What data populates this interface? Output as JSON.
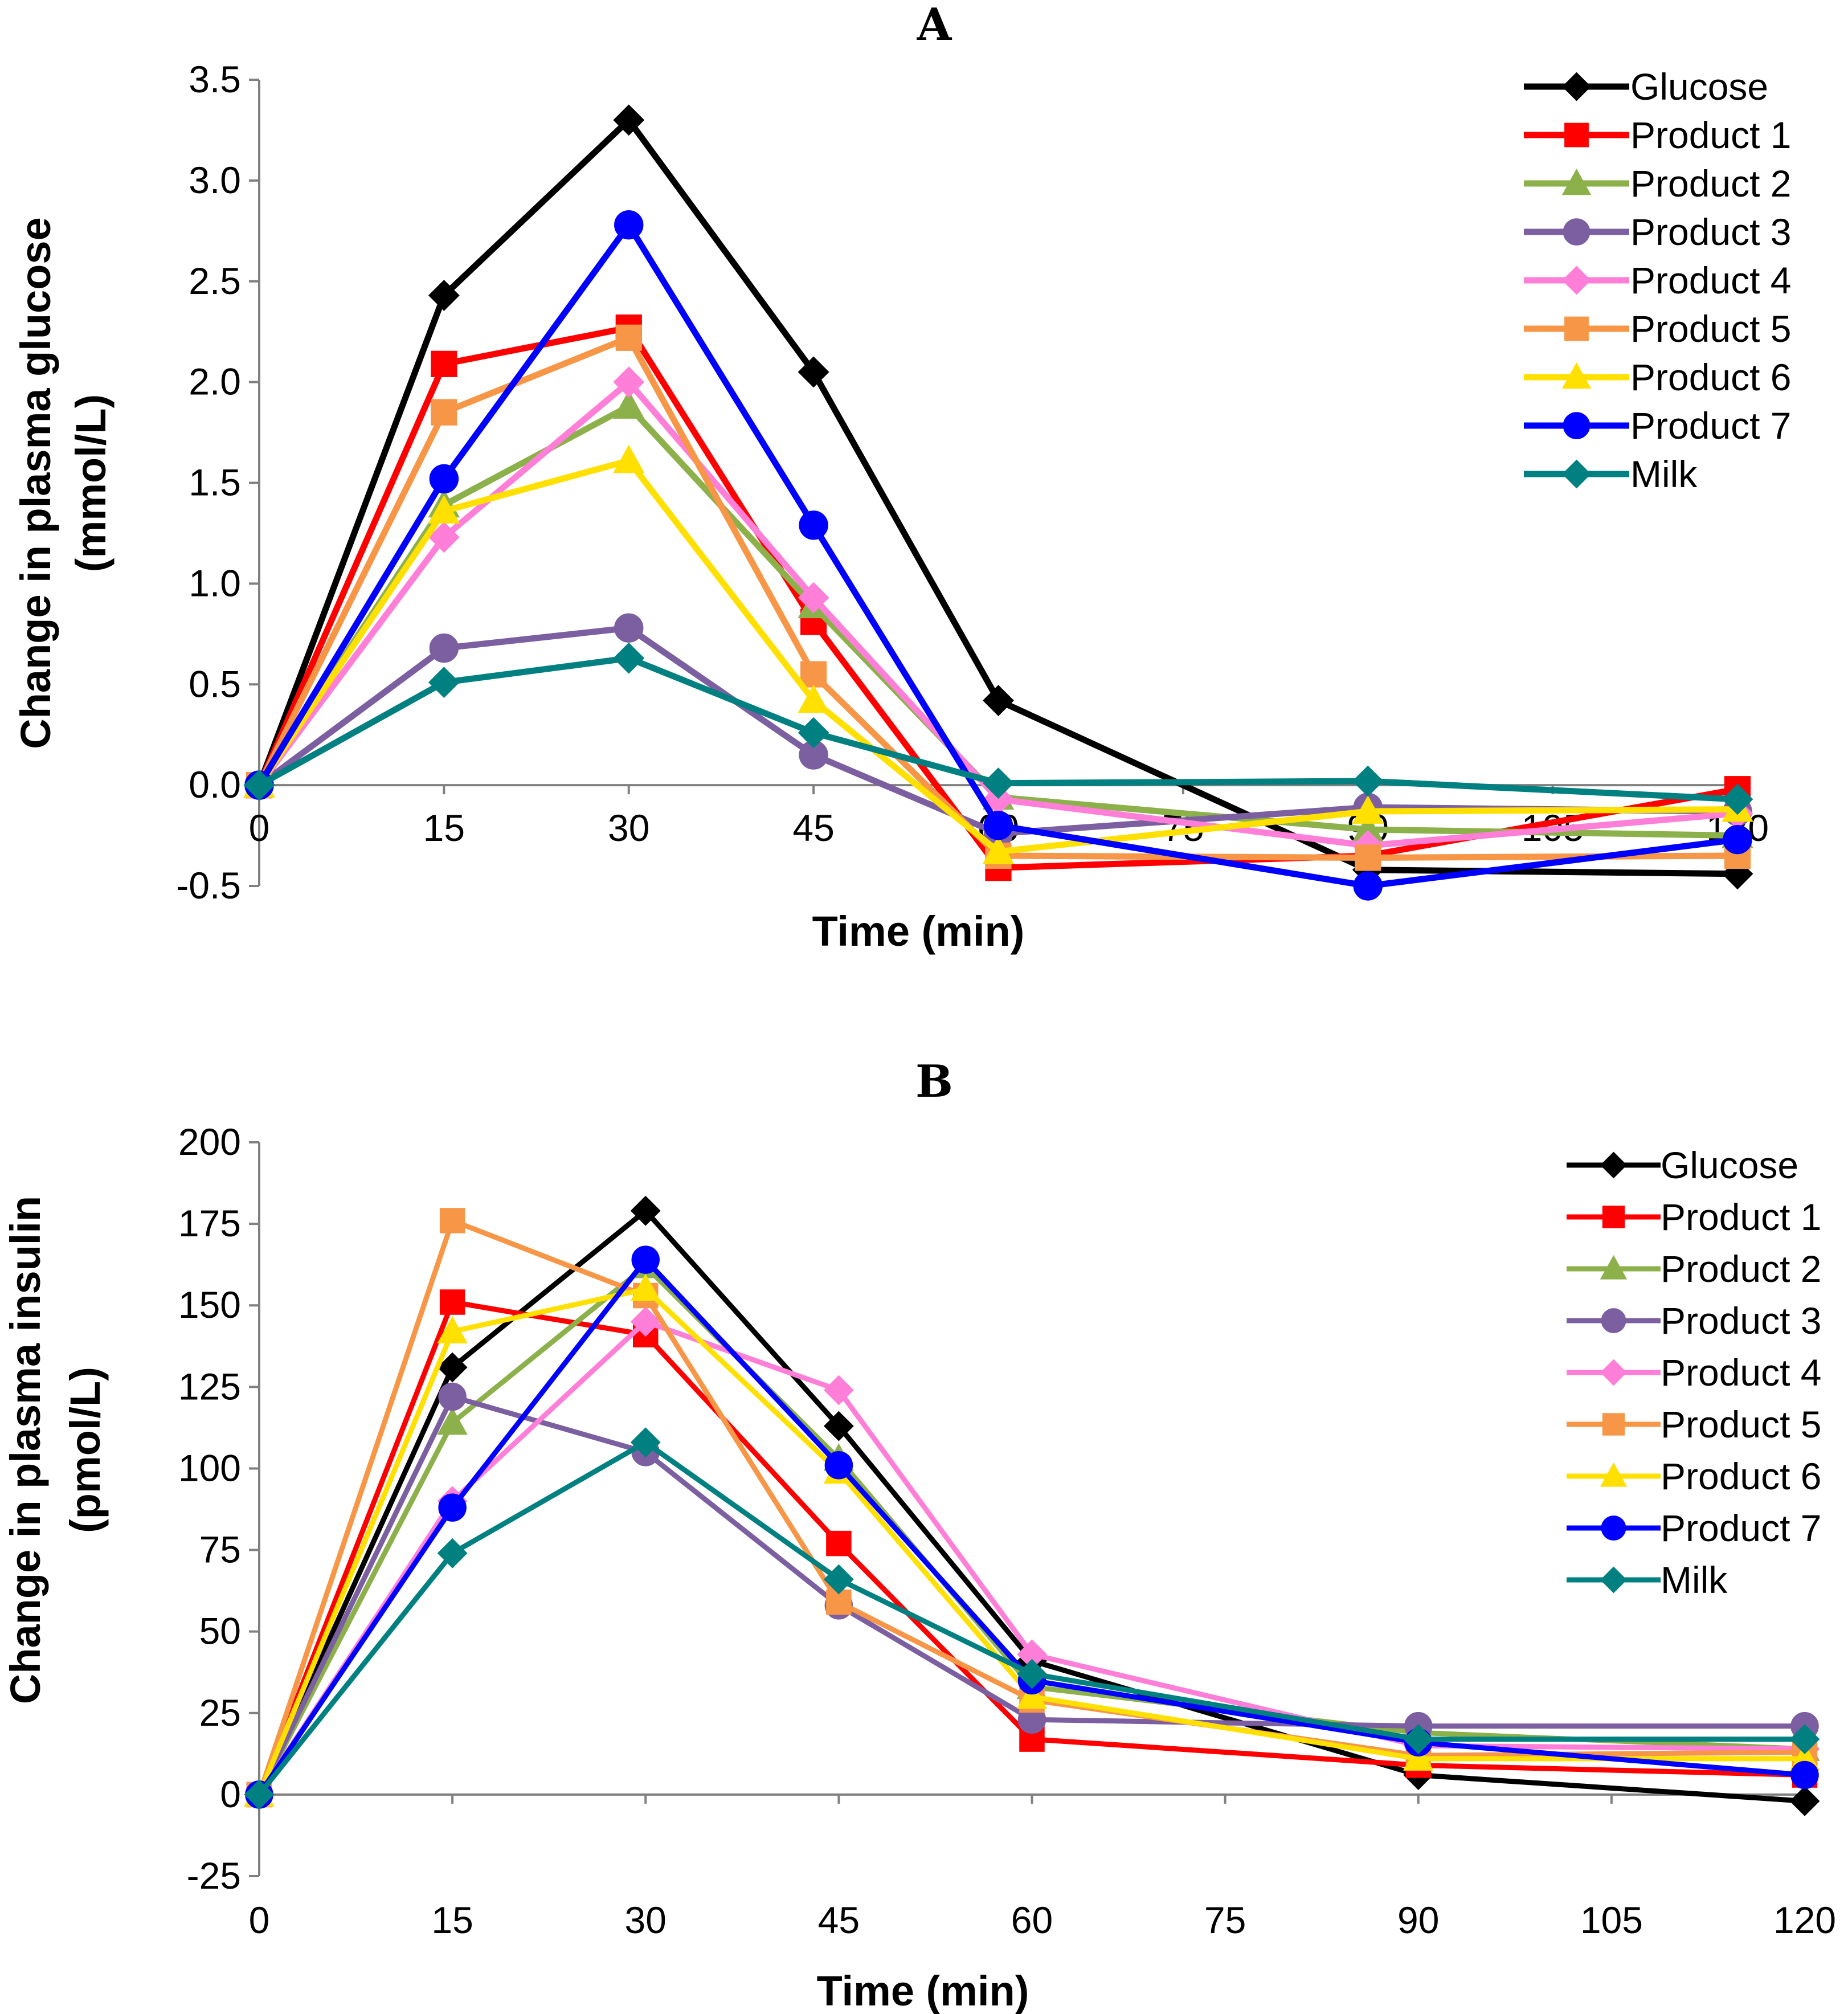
{
  "chart_data": [
    {
      "type": "line",
      "title": "A",
      "xlabel": "Time (min)",
      "ylabel": [
        "Change in plasma glucose",
        "(mmol/L)"
      ],
      "xlim": [
        0,
        120
      ],
      "ylim": [
        -0.5,
        3.5
      ],
      "xticks": [
        "0",
        "15",
        "30",
        "45",
        "60",
        "75",
        "90",
        "105",
        "120"
      ],
      "yticks": [
        "-0.5",
        "0.0",
        "0.5",
        "1.0",
        "1.5",
        "2.0",
        "2.5",
        "3.0",
        "3.5"
      ],
      "grid": false,
      "legend_position": "top-right",
      "x": [
        0,
        15,
        30,
        45,
        60,
        90,
        120
      ],
      "series": [
        {
          "name": "Glucose",
          "color": "#000000",
          "marker": "diamond",
          "values": [
            0,
            2.43,
            3.3,
            2.05,
            0.42,
            -0.42,
            -0.44
          ]
        },
        {
          "name": "Product 1",
          "color": "#ff0000",
          "marker": "square",
          "values": [
            0,
            2.09,
            2.27,
            0.81,
            -0.41,
            -0.35,
            -0.02
          ]
        },
        {
          "name": "Product 2",
          "color": "#8cb04a",
          "marker": "triangle",
          "values": [
            0,
            1.39,
            1.88,
            0.89,
            -0.06,
            -0.22,
            -0.25
          ]
        },
        {
          "name": "Product 3",
          "color": "#7b5fa0",
          "marker": "circle",
          "values": [
            0,
            0.68,
            0.78,
            0.15,
            -0.24,
            -0.11,
            -0.13
          ]
        },
        {
          "name": "Product 4",
          "color": "#ff7fd8",
          "marker": "diamond",
          "values": [
            0,
            1.23,
            2.0,
            0.93,
            -0.07,
            -0.3,
            -0.14
          ]
        },
        {
          "name": "Product 5",
          "color": "#f79646",
          "marker": "square",
          "values": [
            0,
            1.85,
            2.22,
            0.55,
            -0.35,
            -0.36,
            -0.35
          ]
        },
        {
          "name": "Product 6",
          "color": "#ffe000",
          "marker": "triangle",
          "values": [
            0,
            1.36,
            1.61,
            0.42,
            -0.33,
            -0.13,
            -0.12
          ]
        },
        {
          "name": "Product 7",
          "color": "#0000ff",
          "marker": "circle",
          "values": [
            0,
            1.52,
            2.78,
            1.29,
            -0.2,
            -0.5,
            -0.27
          ]
        },
        {
          "name": "Milk",
          "color": "#008080",
          "marker": "diamond",
          "values": [
            0,
            0.51,
            0.63,
            0.26,
            0.01,
            0.02,
            -0.07
          ]
        }
      ]
    },
    {
      "type": "line",
      "title": "B",
      "xlabel": "Time (min)",
      "ylabel": [
        "Change in plasma insulin",
        "(pmol/L)"
      ],
      "xlim": [
        0,
        120
      ],
      "ylim": [
        -25,
        200
      ],
      "xticks": [
        "0",
        "15",
        "30",
        "45",
        "60",
        "75",
        "90",
        "105",
        "120"
      ],
      "yticks": [
        "-25",
        "0",
        "25",
        "50",
        "75",
        "100",
        "125",
        "150",
        "175",
        "200"
      ],
      "grid": false,
      "legend_position": "top-right",
      "x": [
        0,
        15,
        30,
        45,
        60,
        90,
        120
      ],
      "series": [
        {
          "name": "Glucose",
          "color": "#000000",
          "marker": "diamond",
          "values": [
            0,
            131,
            179,
            113,
            41,
            6,
            -2
          ]
        },
        {
          "name": "Product 1",
          "color": "#ff0000",
          "marker": "square",
          "values": [
            0,
            151,
            141,
            77,
            17,
            9,
            6
          ]
        },
        {
          "name": "Product 2",
          "color": "#8cb04a",
          "marker": "triangle",
          "values": [
            0,
            114,
            162,
            103,
            33,
            19,
            14
          ]
        },
        {
          "name": "Product 3",
          "color": "#7b5fa0",
          "marker": "circle",
          "values": [
            0,
            122,
            105,
            58,
            23,
            21,
            21
          ]
        },
        {
          "name": "Product 4",
          "color": "#ff7fd8",
          "marker": "diamond",
          "values": [
            0,
            90,
            145,
            124,
            43,
            15,
            14
          ]
        },
        {
          "name": "Product 5",
          "color": "#f79646",
          "marker": "square",
          "values": [
            0,
            176,
            153,
            59,
            29,
            12,
            13
          ]
        },
        {
          "name": "Product 6",
          "color": "#ffe000",
          "marker": "triangle",
          "values": [
            0,
            142,
            155,
            99,
            30,
            11,
            11
          ]
        },
        {
          "name": "Product 7",
          "color": "#0000ff",
          "marker": "circle",
          "values": [
            0,
            88,
            164,
            101,
            35,
            16,
            6
          ]
        },
        {
          "name": "Milk",
          "color": "#008080",
          "marker": "diamond",
          "values": [
            0,
            74,
            108,
            66,
            37,
            17,
            17
          ]
        }
      ]
    }
  ]
}
